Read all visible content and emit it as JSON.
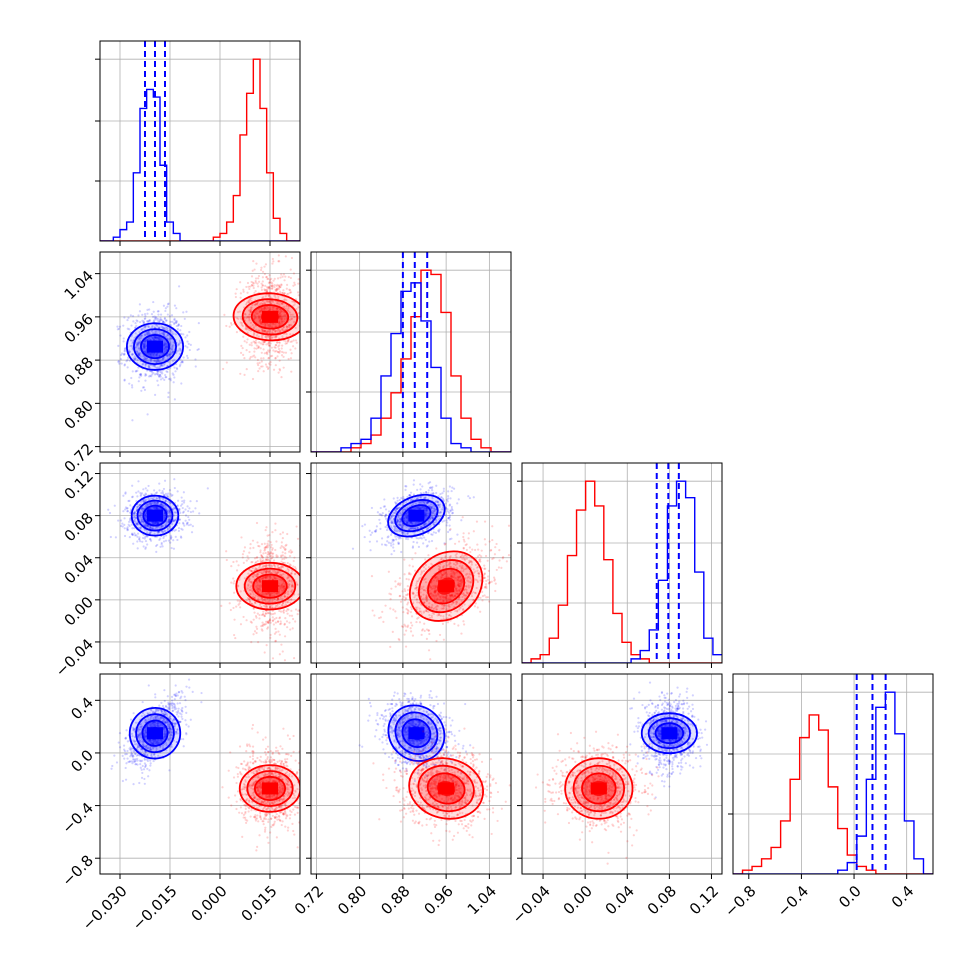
{
  "chart_data": {
    "type": "corner",
    "colors": {
      "model_a": "#0000ff",
      "model_b": "#ff0000",
      "grid": "#b0b0b0"
    },
    "grid": true,
    "title": "",
    "parameters": [
      {
        "range": [
          -0.036,
          0.024
        ],
        "ticks": [
          -0.03,
          -0.015,
          0.0,
          0.015
        ],
        "tick_labels": [
          "−0.030",
          "−0.015",
          "0.000",
          "0.015"
        ]
      },
      {
        "range": [
          0.71,
          1.08
        ],
        "ticks": [
          0.72,
          0.8,
          0.88,
          0.96,
          1.04
        ],
        "tick_labels": [
          "0.72",
          "0.80",
          "0.88",
          "0.96",
          "1.04"
        ]
      },
      {
        "range": [
          -0.06,
          0.13
        ],
        "ticks": [
          -0.04,
          0.0,
          0.04,
          0.08,
          0.12
        ],
        "tick_labels": [
          "−0.04",
          "0.00",
          "0.04",
          "0.08",
          "0.12"
        ]
      },
      {
        "range": [
          -0.92,
          0.6
        ],
        "ticks": [
          -0.8,
          -0.4,
          0.0,
          0.4
        ],
        "tick_labels": [
          "−0.8",
          "−0.4",
          "0.0",
          "0.4"
        ]
      }
    ],
    "series": [
      {
        "color": "#0000ff",
        "means": [
          -0.0195,
          0.905,
          0.08,
          0.15
        ],
        "sds": [
          0.0035,
          0.026,
          0.0095,
          0.105
        ],
        "correlations": {
          "1-0": 0.0,
          "2-0": 0.0,
          "2-1": 0.35,
          "3-0": 0.6,
          "3-1": -0.25,
          "3-2": 0.0
        },
        "quantile_lines": [
          [
            -0.0225,
            -0.0195,
            -0.0165
          ],
          [
            0.88,
            0.902,
            0.925
          ],
          [
            0.068,
            0.079,
            0.089
          ],
          [
            0.02,
            0.14,
            0.24
          ]
        ]
      },
      {
        "color": "#ff0000",
        "means": [
          0.015,
          0.96,
          0.013,
          -0.27
        ],
        "sds": [
          0.0035,
          0.034,
          0.016,
          0.115
        ],
        "correlations": {
          "1-0": 0.05,
          "2-0": 0.0,
          "2-1": 0.45,
          "3-0": 0.0,
          "3-1": -0.1,
          "3-2": 0.0
        },
        "quantile_lines": null
      }
    ],
    "histograms": [
      {
        "param": 0,
        "series_0": {
          "edges": [
            -0.036,
            0.024
          ],
          "counts": [
            0,
            0,
            1,
            3,
            5,
            18,
            35,
            40,
            38,
            20,
            5,
            2,
            0,
            0,
            0,
            0,
            0,
            0,
            0,
            0,
            0,
            0,
            0,
            0,
            0,
            0,
            0,
            0,
            0,
            0
          ]
        },
        "series_1": {
          "edges": [
            -0.036,
            0.024
          ],
          "counts": [
            0,
            0,
            0,
            0,
            0,
            0,
            0,
            0,
            0,
            0,
            0,
            0,
            0,
            0,
            0,
            0,
            0,
            1,
            2,
            5,
            12,
            28,
            39,
            48,
            35,
            18,
            6,
            2,
            0,
            0
          ]
        }
      },
      {
        "param": 1,
        "series_0": {
          "edges": [
            0.71,
            1.08
          ],
          "counts": [
            0,
            0,
            0,
            1,
            2,
            3,
            8,
            18,
            28,
            38,
            40,
            31,
            20,
            8,
            2,
            1,
            0,
            0,
            0,
            0
          ]
        },
        "series_1": {
          "edges": [
            0.71,
            1.08
          ],
          "counts": [
            0,
            0,
            0,
            0,
            1,
            2,
            4,
            8,
            14,
            22,
            32,
            43,
            42,
            33,
            18,
            8,
            3,
            1,
            0,
            0
          ]
        }
      },
      {
        "param": 2,
        "series_0": {
          "edges": [
            -0.06,
            0.13
          ],
          "counts": [
            0,
            0,
            0,
            0,
            0,
            0,
            0,
            0,
            0,
            0,
            0,
            0,
            1,
            3,
            8,
            20,
            38,
            44,
            40,
            22,
            6,
            2
          ]
        },
        "series_1": {
          "edges": [
            -0.06,
            0.13
          ],
          "counts": [
            0,
            1,
            2,
            6,
            14,
            26,
            37,
            44,
            38,
            25,
            12,
            5,
            2,
            1,
            0,
            0,
            0,
            0,
            0,
            0,
            0,
            0
          ]
        }
      },
      {
        "param": 3,
        "series_0": {
          "edges": [
            -0.92,
            0.6
          ],
          "counts": [
            0,
            0,
            0,
            0,
            0,
            0,
            0,
            0,
            0,
            0,
            0,
            1,
            3,
            10,
            25,
            44,
            48,
            37,
            14,
            4,
            0
          ]
        },
        "series_1": {
          "edges": [
            -0.92,
            0.6
          ],
          "counts": [
            0,
            1,
            2,
            4,
            7,
            14,
            25,
            36,
            42,
            38,
            23,
            12,
            5,
            2,
            1,
            0,
            0,
            0,
            0,
            0,
            0
          ]
        }
      }
    ]
  }
}
